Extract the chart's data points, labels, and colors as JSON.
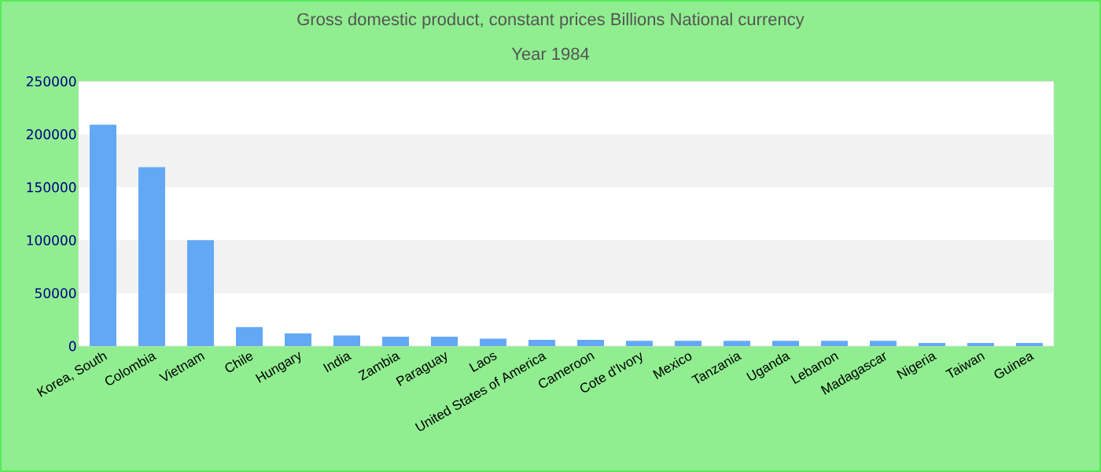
{
  "chart_data": {
    "type": "bar",
    "title": "Gross domestic product, constant prices Billions National currency",
    "subtitle": "Year 1984",
    "categories": [
      "Korea, South",
      "Colombia",
      "Vietnam",
      "Chile",
      "Hungary",
      "India",
      "Zambia",
      "Paraguay",
      "Laos",
      "United States of America",
      "Cameroon",
      "Cote d'Ivory",
      "Mexico",
      "Tanzania",
      "Uganda",
      "Lebanon",
      "Madagascar",
      "Nigeria",
      "Taiwan",
      "Guinea"
    ],
    "values": [
      209000,
      169000,
      100000,
      18000,
      12000,
      10000,
      9000,
      9000,
      7000,
      6000,
      6000,
      5000,
      5000,
      5000,
      5000,
      5000,
      5000,
      3000,
      3000,
      3000
    ],
    "color": "#63a8f5",
    "ylim": [
      0,
      250000
    ],
    "yticks": [
      0,
      50000,
      100000,
      150000,
      200000,
      250000
    ],
    "bands": [
      {
        "axis": "y",
        "from": 50000,
        "to": 100000,
        "color": "#f2f2f2"
      },
      {
        "axis": "y",
        "from": 150000,
        "to": 200000,
        "color": "#f2f2f2"
      }
    ]
  }
}
